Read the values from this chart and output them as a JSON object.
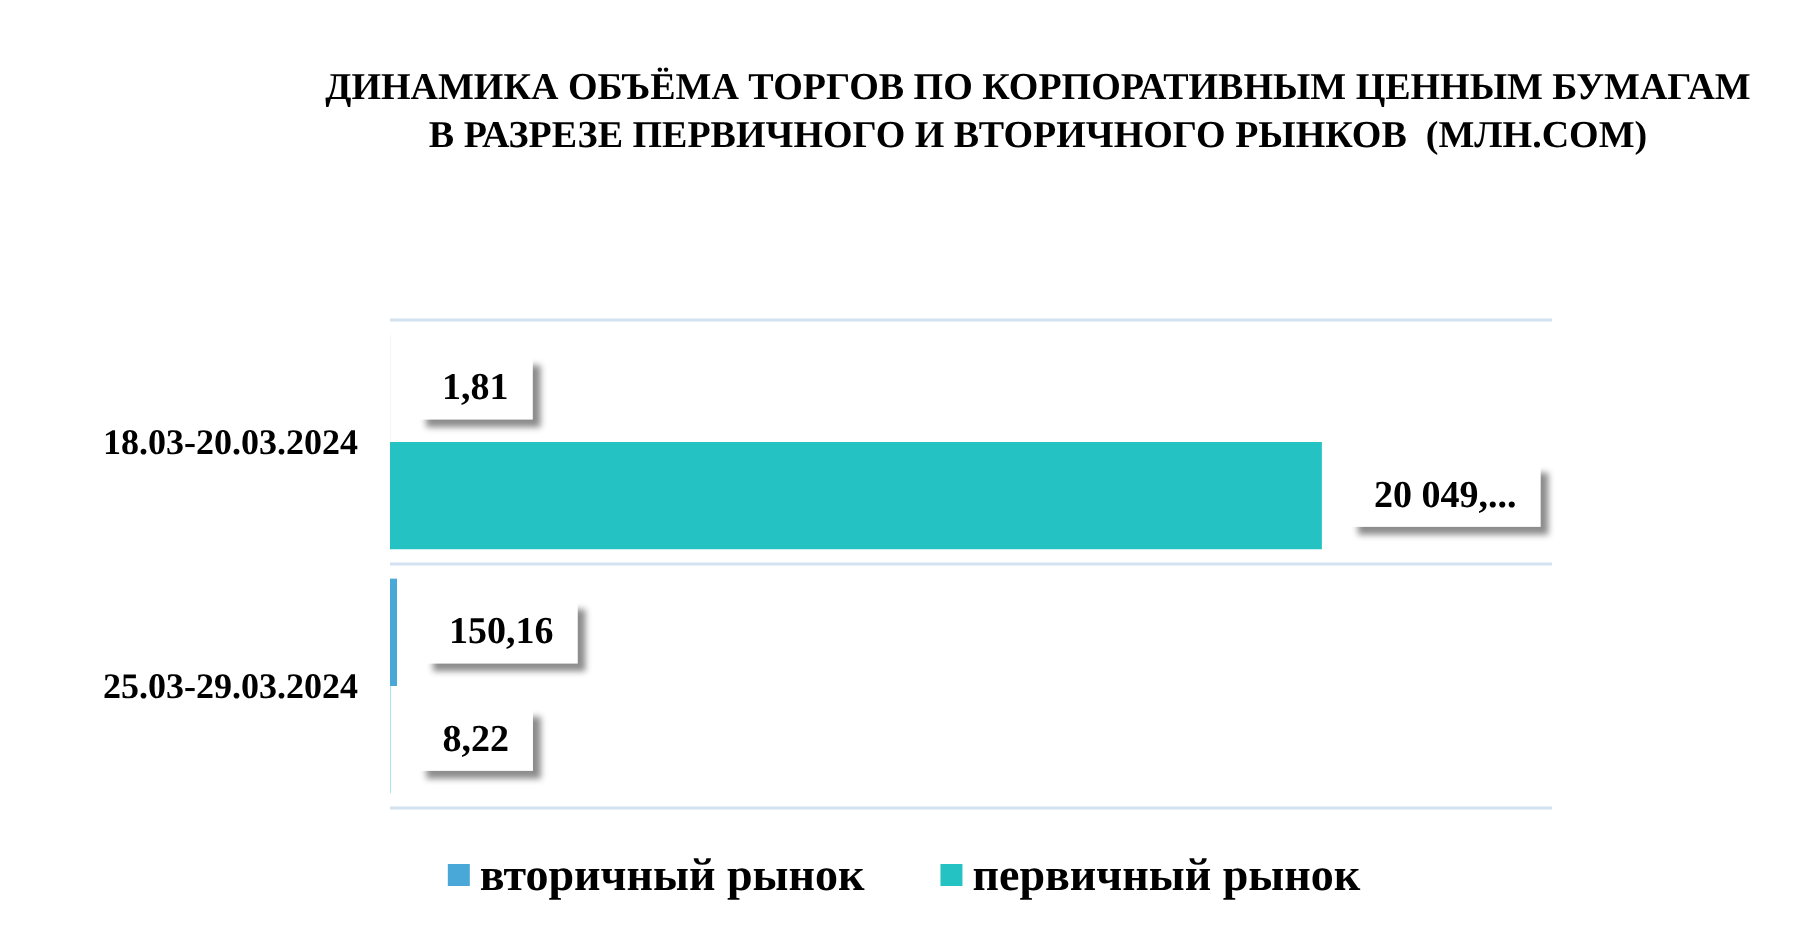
{
  "chart_data": {
    "type": "bar",
    "orientation": "horizontal",
    "title": "ДИНАМИКА ОБЪЁМА ТОРГОВ ПО КОРПОРАТИВНЫМ ЦЕННЫМ БУМАГАМ В РАЗРЕЗЕ ПЕРВИЧНОГО И ВТОРИЧНОГО РЫНКОВ  (МЛН.СОМ)",
    "categories": [
      "18.03-20.03.2024",
      "25.03-29.03.2024"
    ],
    "series": [
      {
        "name": "вторичный рынок",
        "color": "#4aa8d8",
        "values": [
          1.81,
          150.16
        ],
        "value_labels": [
          "1,81",
          "150,16"
        ]
      },
      {
        "name": "первичный рынок",
        "color": "#24c2c2",
        "values": [
          20049,
          8.22
        ],
        "value_labels": [
          "20 049,...",
          "8,22"
        ]
      }
    ],
    "grid": "y",
    "legend": "bottom",
    "tick_labels": "y"
  }
}
